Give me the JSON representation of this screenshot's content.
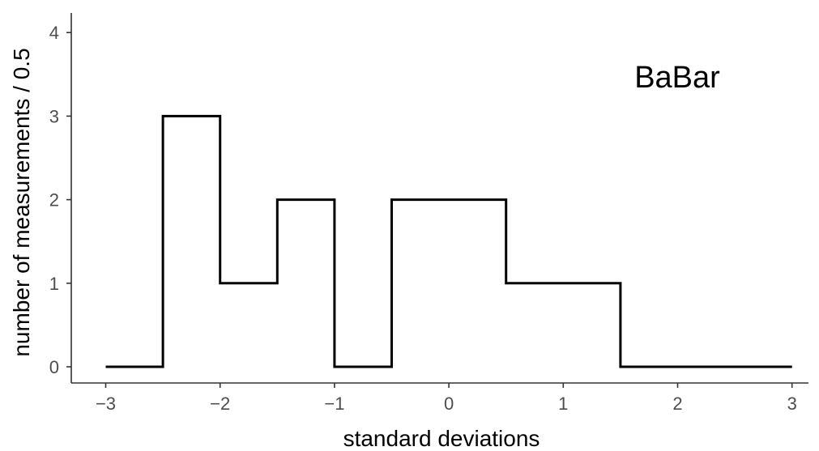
{
  "chart_data": {
    "type": "line",
    "style": "step-histogram",
    "annotation": "BaBar",
    "xlabel": "standard deviations",
    "ylabel": "number of measurements / 0.5",
    "xlim": [
      -3,
      3
    ],
    "ylim": [
      0,
      4
    ],
    "x_ticks": [
      -3,
      -2,
      -1,
      0,
      1,
      2,
      3
    ],
    "x_tick_labels": [
      "−3",
      "−2",
      "−1",
      "0",
      "1",
      "2",
      "3"
    ],
    "y_ticks": [
      0,
      1,
      2,
      3,
      4
    ],
    "y_tick_labels": [
      "0",
      "1",
      "2",
      "3",
      "4"
    ],
    "bin_edges": [
      -3,
      -2.5,
      -2,
      -1.5,
      -1,
      -0.5,
      0,
      0.5,
      1,
      1.5,
      2,
      2.5,
      3
    ],
    "counts": [
      0,
      3,
      1,
      2,
      0,
      2,
      2,
      1,
      1,
      0,
      0,
      0
    ],
    "grid": false
  }
}
